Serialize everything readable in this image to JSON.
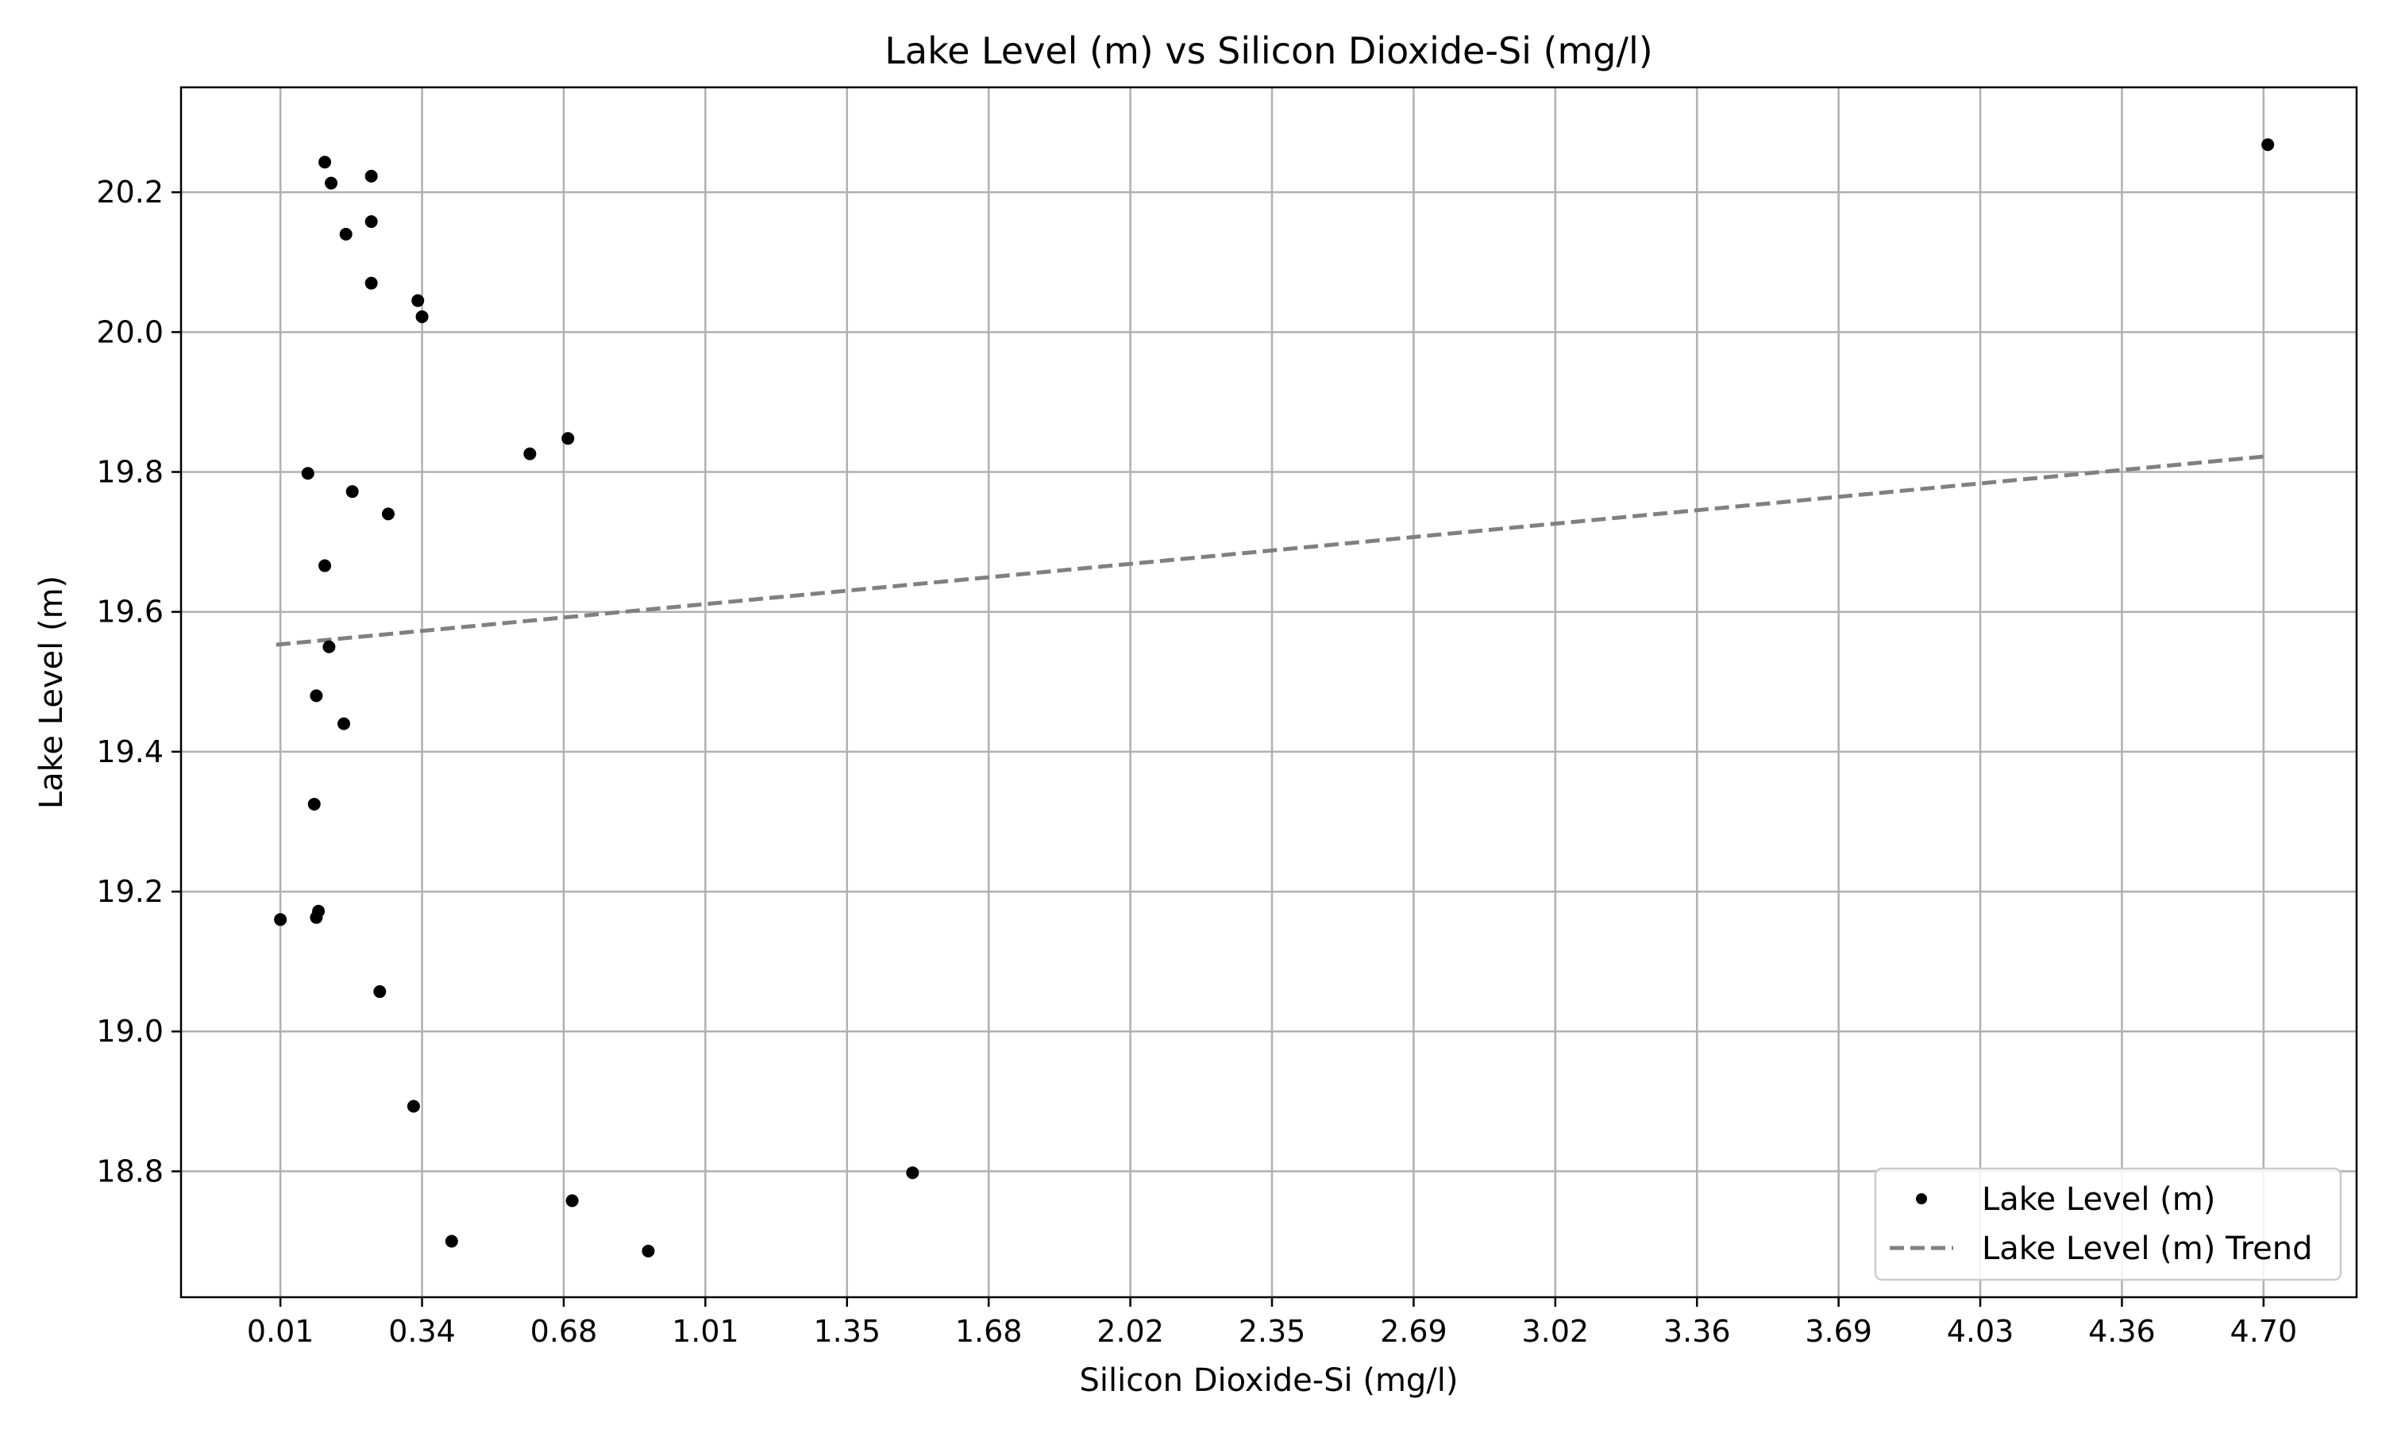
{
  "chart_data": {
    "type": "scatter",
    "title": "Lake Level (m) vs Silicon Dioxide-Si (mg/l)",
    "xlabel": "Silicon Dioxide-Si (mg/l)",
    "ylabel": "Lake Level (m)",
    "xlim": [
      -0.225,
      4.92
    ],
    "ylim": [
      18.62,
      20.35
    ],
    "x_ticks": [
      "0.01",
      "0.34",
      "0.68",
      "1.01",
      "1.35",
      "1.68",
      "2.02",
      "2.35",
      "2.69",
      "3.02",
      "3.36",
      "3.69",
      "4.03",
      "4.36",
      "4.70"
    ],
    "x_tick_values": [
      0.01,
      0.345,
      0.68,
      1.015,
      1.35,
      1.685,
      2.02,
      2.355,
      2.69,
      3.025,
      3.36,
      3.695,
      4.03,
      4.365,
      4.7
    ],
    "y_ticks": [
      "18.8",
      "19.0",
      "19.2",
      "19.4",
      "19.6",
      "19.8",
      "20.0",
      "20.2"
    ],
    "y_tick_values": [
      18.8,
      19.0,
      19.2,
      19.4,
      19.6,
      19.8,
      20.0,
      20.2
    ],
    "grid": true,
    "legend_position": "bottom-right",
    "series": [
      {
        "name": "Lake Level (m)",
        "kind": "scatter",
        "color": "#000000",
        "points": [
          {
            "x": 0.115,
            "y": 20.243
          },
          {
            "x": 0.225,
            "y": 20.223
          },
          {
            "x": 0.13,
            "y": 20.213
          },
          {
            "x": 0.225,
            "y": 20.158
          },
          {
            "x": 0.165,
            "y": 20.14
          },
          {
            "x": 0.225,
            "y": 20.07
          },
          {
            "x": 0.335,
            "y": 20.045
          },
          {
            "x": 0.345,
            "y": 20.022
          },
          {
            "x": 0.6,
            "y": 19.826
          },
          {
            "x": 0.69,
            "y": 19.848
          },
          {
            "x": 0.075,
            "y": 19.798
          },
          {
            "x": 0.18,
            "y": 19.772
          },
          {
            "x": 0.265,
            "y": 19.74
          },
          {
            "x": 0.115,
            "y": 19.666
          },
          {
            "x": 0.125,
            "y": 19.55
          },
          {
            "x": 0.095,
            "y": 19.48
          },
          {
            "x": 0.16,
            "y": 19.44
          },
          {
            "x": 0.09,
            "y": 19.325
          },
          {
            "x": 0.01,
            "y": 19.16
          },
          {
            "x": 0.1,
            "y": 19.172
          },
          {
            "x": 0.095,
            "y": 19.163
          },
          {
            "x": 0.245,
            "y": 19.057
          },
          {
            "x": 0.325,
            "y": 18.893
          },
          {
            "x": 0.7,
            "y": 18.758
          },
          {
            "x": 0.415,
            "y": 18.7
          },
          {
            "x": 0.88,
            "y": 18.686
          },
          {
            "x": 1.505,
            "y": 18.798
          },
          {
            "x": 4.71,
            "y": 20.268
          }
        ]
      },
      {
        "name": "Lake Level (m) Trend",
        "kind": "line",
        "color": "#808080",
        "dash": "dashed",
        "points": [
          {
            "x": 0.0,
            "y": 19.553
          },
          {
            "x": 4.7,
            "y": 19.822
          }
        ]
      }
    ]
  }
}
